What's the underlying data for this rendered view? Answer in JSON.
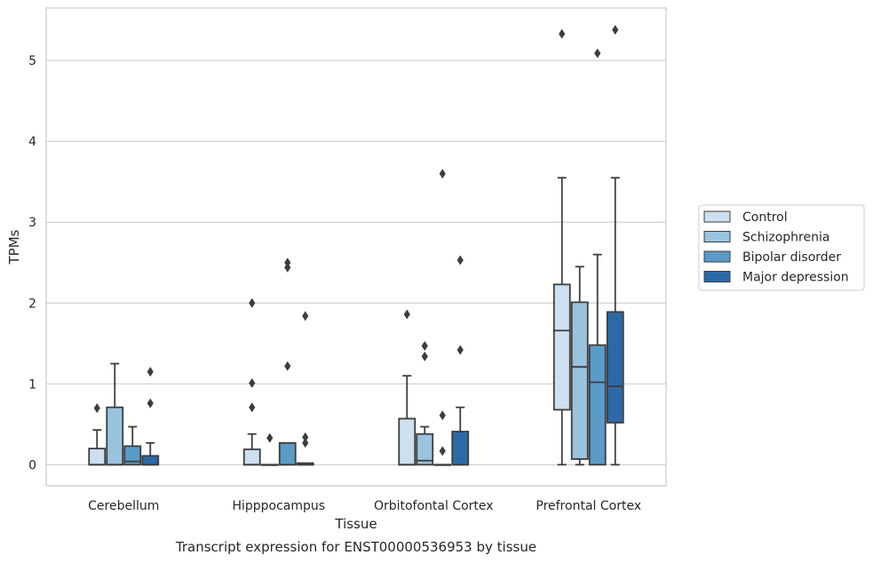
{
  "chart_data": {
    "type": "boxplot",
    "title": "Transcript expression for ENST00000536953 by tissue",
    "xlabel": "Tissue",
    "ylabel": "TPMs",
    "ylim": [
      -0.26,
      5.65
    ],
    "yticks": [
      0,
      1,
      2,
      3,
      4,
      5
    ],
    "grid": true,
    "legend_position": "right",
    "categories": [
      "Cerebellum",
      "Hipppocampus",
      "Orbitofontal Cortex",
      "Prefrontal Cortex"
    ],
    "series": [
      {
        "name": "Control",
        "color": "#cddff0",
        "boxes": [
          {
            "whislo": 0,
            "q1": 0,
            "med": 0,
            "q3": 0.2,
            "whishi": 0.43,
            "fliers": [
              0.7
            ]
          },
          {
            "whislo": 0,
            "q1": 0,
            "med": 0,
            "q3": 0.19,
            "whishi": 0.38,
            "fliers": [
              0.71,
              1.01,
              2.0
            ]
          },
          {
            "whislo": 0,
            "q1": 0,
            "med": 0,
            "q3": 0.57,
            "whishi": 1.1,
            "fliers": [
              1.86
            ]
          },
          {
            "whislo": 0,
            "q1": 0.68,
            "med": 1.66,
            "q3": 2.23,
            "whishi": 3.55,
            "fliers": [
              5.33
            ]
          }
        ]
      },
      {
        "name": "Schizophrenia",
        "color": "#9ac3dd",
        "boxes": [
          {
            "whislo": 0,
            "q1": 0,
            "med": 0,
            "q3": 0.71,
            "whishi": 1.25,
            "fliers": []
          },
          {
            "whislo": 0,
            "q1": 0,
            "med": 0,
            "q3": 0,
            "whishi": 0,
            "fliers": [
              0.33
            ]
          },
          {
            "whislo": 0,
            "q1": 0,
            "med": 0.05,
            "q3": 0.38,
            "whishi": 0.47,
            "fliers": [
              1.34,
              1.47
            ]
          },
          {
            "whislo": 0,
            "q1": 0.07,
            "med": 1.21,
            "q3": 2.01,
            "whishi": 2.45,
            "fliers": []
          }
        ]
      },
      {
        "name": "Bipolar disorder",
        "color": "#5b9bc7",
        "boxes": [
          {
            "whislo": 0,
            "q1": 0,
            "med": 0.04,
            "q3": 0.23,
            "whishi": 0.47,
            "fliers": []
          },
          {
            "whislo": 0,
            "q1": 0,
            "med": 0,
            "q3": 0.27,
            "whishi": 0.27,
            "fliers": [
              1.22,
              2.44,
              2.5
            ]
          },
          {
            "whislo": 0,
            "q1": 0,
            "med": 0,
            "q3": 0,
            "whishi": 0,
            "fliers": [
              0.17,
              0.61,
              3.6
            ]
          },
          {
            "whislo": 0,
            "q1": 0,
            "med": 1.02,
            "q3": 1.48,
            "whishi": 2.6,
            "fliers": [
              5.09
            ]
          }
        ]
      },
      {
        "name": "Major depression",
        "color": "#2c6aa7",
        "boxes": [
          {
            "whislo": 0,
            "q1": 0,
            "med": 0,
            "q3": 0.11,
            "whishi": 0.27,
            "fliers": [
              0.76,
              1.15
            ]
          },
          {
            "whislo": 0,
            "q1": 0,
            "med": 0,
            "q3": 0.02,
            "whishi": 0.02,
            "fliers": [
              0.27,
              0.34,
              1.84
            ]
          },
          {
            "whislo": 0,
            "q1": 0,
            "med": 0,
            "q3": 0.41,
            "whishi": 0.71,
            "fliers": [
              1.42,
              2.53
            ]
          },
          {
            "whislo": 0,
            "q1": 0.52,
            "med": 0.97,
            "q3": 1.89,
            "whishi": 3.55,
            "fliers": [
              5.38
            ]
          }
        ]
      }
    ]
  }
}
